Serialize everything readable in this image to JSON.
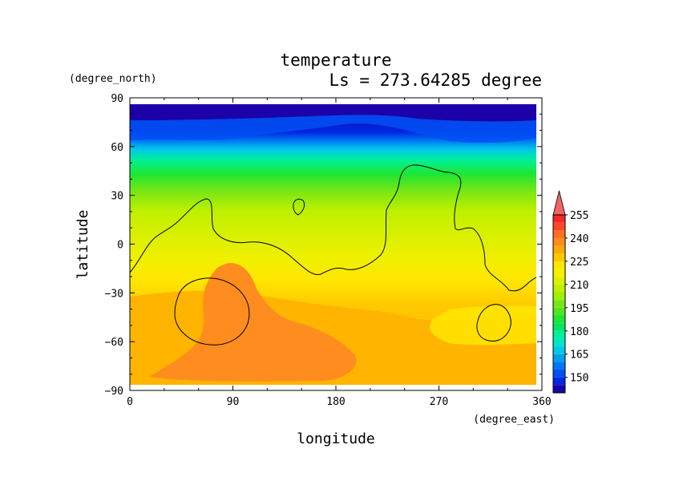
{
  "chart_data": {
    "type": "heatmap",
    "title": "temperature",
    "subtitle": "Ls = 273.64285 degree",
    "xlabel": "longitude",
    "ylabel": "latitude",
    "x_unit": "(degree_east)",
    "y_unit": "(degree_north)",
    "xlim": [
      0,
      360
    ],
    "ylim": [
      -90,
      90
    ],
    "x_ticks": [
      "0",
      "90",
      "180",
      "270",
      "360"
    ],
    "y_ticks": [
      "90",
      "60",
      "30",
      "0",
      "−30",
      "−60",
      "−90"
    ],
    "x_tick_values": [
      0,
      90,
      180,
      270,
      360
    ],
    "y_tick_values": [
      90,
      60,
      30,
      0,
      -30,
      -60,
      -90
    ],
    "colorbar": {
      "levels": [
        140,
        145,
        150,
        155,
        160,
        165,
        170,
        175,
        180,
        185,
        190,
        195,
        200,
        205,
        210,
        215,
        220,
        225,
        230,
        235,
        240,
        245,
        250,
        255,
        260
      ],
      "colors": [
        "#1c00a8",
        "#0028e0",
        "#0050f5",
        "#0078f5",
        "#00a0f0",
        "#00c8e8",
        "#00e6c8",
        "#00f096",
        "#00e664",
        "#1ee632",
        "#50e61e",
        "#78e614",
        "#a0f000",
        "#bef000",
        "#dcf000",
        "#f0f000",
        "#ffe600",
        "#ffc800",
        "#ffaa00",
        "#ff8c1e",
        "#ff6e1e",
        "#ff4628",
        "#f52828",
        "#f06464"
      ],
      "tick_labels": [
        "150",
        "165",
        "180",
        "195",
        "210",
        "225",
        "240",
        "255"
      ],
      "tick_values": [
        150,
        165,
        180,
        195,
        210,
        225,
        240,
        255
      ]
    },
    "lat_profile": [
      {
        "lat": 85,
        "temp": 146
      },
      {
        "lat": 78,
        "temp": 149
      },
      {
        "lat": 72,
        "temp": 154
      },
      {
        "lat": 66,
        "temp": 160
      },
      {
        "lat": 62,
        "temp": 167
      },
      {
        "lat": 57,
        "temp": 174
      },
      {
        "lat": 52,
        "temp": 181
      },
      {
        "lat": 47,
        "temp": 188
      },
      {
        "lat": 42,
        "temp": 194
      },
      {
        "lat": 36,
        "temp": 200
      },
      {
        "lat": 30,
        "temp": 205
      },
      {
        "lat": 22,
        "temp": 209
      },
      {
        "lat": 14,
        "temp": 212
      },
      {
        "lat": 5,
        "temp": 216
      },
      {
        "lat": -5,
        "temp": 219
      },
      {
        "lat": -15,
        "temp": 222
      },
      {
        "lat": -25,
        "temp": 226
      },
      {
        "lat": -35,
        "temp": 229
      },
      {
        "lat": -50,
        "temp": 231
      },
      {
        "lat": -65,
        "temp": 232
      },
      {
        "lat": -78,
        "temp": 230
      },
      {
        "lat": -85,
        "temp": 228
      }
    ]
  }
}
